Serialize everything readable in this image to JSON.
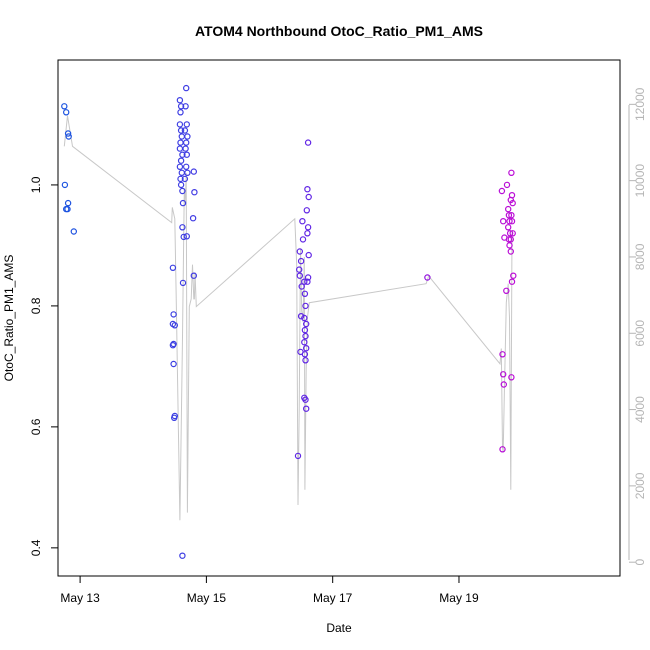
{
  "chart_data": {
    "type": "scatter",
    "title": "ATOM4 Northbound OtoC_Ratio_PM1_AMS",
    "xlabel": "Date",
    "ylabel": "OtoC_Ratio_PM1_AMS",
    "x_unit": "days since May 13 00:00",
    "xlim": [
      -0.35,
      8.55
    ],
    "ylim": [
      0.37,
      1.19
    ],
    "y2lim": [
      -100,
      12900
    ],
    "x_ticks": [
      {
        "value": 0,
        "label": "May 13"
      },
      {
        "value": 2,
        "label": "May 15"
      },
      {
        "value": 4,
        "label": "May 17"
      },
      {
        "value": 6,
        "label": "May 19"
      }
    ],
    "y_ticks": [
      {
        "value": 0.4,
        "label": "0.4"
      },
      {
        "value": 0.6,
        "label": "0.6"
      },
      {
        "value": 0.8,
        "label": "0.8"
      },
      {
        "value": 1.0,
        "label": "1.0"
      }
    ],
    "y2_ticks": [
      {
        "value": 0,
        "label": "0"
      },
      {
        "value": 2000,
        "label": "2000"
      },
      {
        "value": 4000,
        "label": "4000"
      },
      {
        "value": 6000,
        "label": "6000"
      },
      {
        "value": 8000,
        "label": "8000"
      },
      {
        "value": 10000,
        "label": "10000"
      },
      {
        "value": 12000,
        "label": "12000"
      }
    ],
    "point_color_start": "#1a55e0",
    "point_color_mid": "#6a1fe6",
    "point_color_end": "#ee00cc",
    "line_color": "#c8c8c8",
    "series": [
      {
        "name": "OtoC_Ratio_PM1_AMS",
        "axis": "left",
        "points": [
          [
            -0.25,
            1.13
          ],
          [
            -0.22,
            1.12
          ],
          [
            -0.24,
            1.0
          ],
          [
            -0.19,
            0.97
          ],
          [
            -0.2,
            0.96
          ],
          [
            -0.22,
            0.96
          ],
          [
            -0.18,
            1.08
          ],
          [
            -0.19,
            1.085
          ],
          [
            -0.1,
            0.923
          ],
          [
            1.47,
            0.863
          ],
          [
            1.48,
            0.786
          ],
          [
            1.47,
            0.77
          ],
          [
            1.5,
            0.768
          ],
          [
            1.48,
            0.737
          ],
          [
            1.47,
            0.735
          ],
          [
            1.48,
            0.704
          ],
          [
            1.5,
            0.618
          ],
          [
            1.49,
            0.615
          ],
          [
            1.58,
            1.14
          ],
          [
            1.6,
            1.13
          ],
          [
            1.59,
            1.12
          ],
          [
            1.58,
            1.1
          ],
          [
            1.6,
            1.09
          ],
          [
            1.61,
            1.08
          ],
          [
            1.59,
            1.07
          ],
          [
            1.58,
            1.06
          ],
          [
            1.62,
            1.05
          ],
          [
            1.6,
            1.04
          ],
          [
            1.58,
            1.03
          ],
          [
            1.61,
            1.02
          ],
          [
            1.59,
            1.01
          ],
          [
            1.6,
            1.0
          ],
          [
            1.62,
            0.99
          ],
          [
            1.63,
            0.97
          ],
          [
            1.62,
            0.93
          ],
          [
            1.64,
            0.914
          ],
          [
            1.62,
            0.387
          ],
          [
            1.63,
            0.838
          ],
          [
            1.68,
            1.16
          ],
          [
            1.67,
            1.13
          ],
          [
            1.69,
            1.1
          ],
          [
            1.66,
            1.09
          ],
          [
            1.7,
            1.08
          ],
          [
            1.68,
            1.07
          ],
          [
            1.67,
            1.06
          ],
          [
            1.69,
            1.05
          ],
          [
            1.68,
            1.03
          ],
          [
            1.7,
            1.02
          ],
          [
            1.66,
            1.01
          ],
          [
            1.69,
            0.915
          ],
          [
            1.8,
            1.022
          ],
          [
            1.81,
            0.988
          ],
          [
            1.79,
            0.945
          ],
          [
            1.8,
            0.85
          ],
          [
            3.45,
            0.552
          ],
          [
            3.48,
            0.89
          ],
          [
            3.5,
            0.874
          ],
          [
            3.47,
            0.86
          ],
          [
            3.48,
            0.85
          ],
          [
            3.5,
            0.783
          ],
          [
            3.49,
            0.724
          ],
          [
            3.52,
            0.94
          ],
          [
            3.53,
            0.91
          ],
          [
            3.51,
            0.832
          ],
          [
            3.55,
            0.84
          ],
          [
            3.56,
            0.82
          ],
          [
            3.57,
            0.8
          ],
          [
            3.55,
            0.78
          ],
          [
            3.58,
            0.77
          ],
          [
            3.56,
            0.76
          ],
          [
            3.57,
            0.75
          ],
          [
            3.55,
            0.74
          ],
          [
            3.58,
            0.73
          ],
          [
            3.56,
            0.72
          ],
          [
            3.57,
            0.71
          ],
          [
            3.55,
            0.648
          ],
          [
            3.57,
            0.645
          ],
          [
            3.58,
            0.63
          ],
          [
            3.61,
            1.07
          ],
          [
            3.6,
            0.993
          ],
          [
            3.62,
            0.98
          ],
          [
            3.59,
            0.958
          ],
          [
            3.61,
            0.93
          ],
          [
            3.6,
            0.92
          ],
          [
            3.62,
            0.884
          ],
          [
            3.61,
            0.847
          ],
          [
            3.6,
            0.84
          ],
          [
            5.5,
            0.847
          ],
          [
            6.68,
            0.99
          ],
          [
            6.7,
            0.94
          ],
          [
            6.72,
            0.913
          ],
          [
            6.69,
            0.72
          ],
          [
            6.7,
            0.687
          ],
          [
            6.71,
            0.67
          ],
          [
            6.69,
            0.563
          ],
          [
            6.75,
            0.825
          ],
          [
            6.76,
            1.0
          ],
          [
            6.78,
            0.96
          ],
          [
            6.79,
            0.95
          ],
          [
            6.8,
            0.94
          ],
          [
            6.78,
            0.93
          ],
          [
            6.81,
            0.92
          ],
          [
            6.79,
            0.91
          ],
          [
            6.8,
            0.9
          ],
          [
            6.82,
            0.89
          ],
          [
            6.83,
            1.02
          ],
          [
            6.84,
            0.983
          ],
          [
            6.82,
            0.975
          ],
          [
            6.85,
            0.97
          ],
          [
            6.83,
            0.95
          ],
          [
            6.84,
            0.94
          ],
          [
            6.85,
            0.92
          ],
          [
            6.82,
            0.91
          ],
          [
            6.86,
            0.85
          ],
          [
            6.84,
            0.84
          ],
          [
            6.83,
            0.682
          ]
        ]
      },
      {
        "name": "secondary axis line",
        "axis": "right",
        "points": [
          [
            -0.25,
            10900
          ],
          [
            -0.2,
            11700
          ],
          [
            -0.12,
            10900
          ],
          [
            1.45,
            8900
          ],
          [
            1.46,
            9300
          ],
          [
            1.5,
            9000
          ],
          [
            1.52,
            7100
          ],
          [
            1.55,
            4100
          ],
          [
            1.58,
            1100
          ],
          [
            1.62,
            5700
          ],
          [
            1.65,
            9800
          ],
          [
            1.66,
            9400
          ],
          [
            1.67,
            9700
          ],
          [
            1.68,
            10200
          ],
          [
            1.7,
            1300
          ],
          [
            1.73,
            6700
          ],
          [
            1.76,
            6900
          ],
          [
            1.78,
            7800
          ],
          [
            1.8,
            6900
          ],
          [
            1.81,
            6900
          ],
          [
            1.82,
            7600
          ],
          [
            1.84,
            6700
          ],
          [
            3.4,
            9000
          ],
          [
            3.43,
            7800
          ],
          [
            3.45,
            1500
          ],
          [
            3.47,
            4000
          ],
          [
            3.49,
            8200
          ],
          [
            3.51,
            6600
          ],
          [
            3.53,
            6300
          ],
          [
            3.55,
            8000
          ],
          [
            3.56,
            1900
          ],
          [
            3.58,
            5100
          ],
          [
            3.6,
            6400
          ],
          [
            3.63,
            6800
          ],
          [
            5.48,
            7300
          ],
          [
            5.52,
            7500
          ],
          [
            6.65,
            5200
          ],
          [
            6.67,
            5600
          ],
          [
            6.69,
            3000
          ],
          [
            6.7,
            2900
          ],
          [
            6.72,
            4500
          ],
          [
            6.75,
            6800
          ],
          [
            6.78,
            7300
          ],
          [
            6.8,
            6400
          ],
          [
            6.82,
            1900
          ],
          [
            6.84,
            8700
          ]
        ]
      }
    ]
  }
}
